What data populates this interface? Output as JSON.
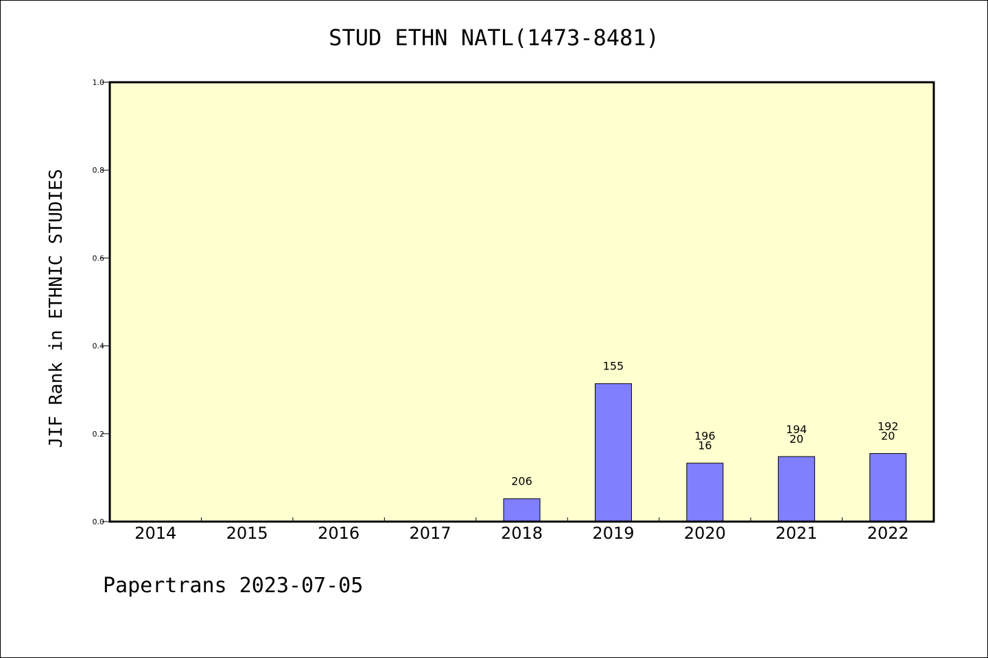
{
  "chart_data": {
    "type": "bar",
    "title": "STUD ETHN NATL(1473-8481)",
    "ylabel": "JIF Rank in ETHNIC STUDIES",
    "xlabel": "",
    "ylim": [
      0,
      1.0
    ],
    "yticks": [
      "0.0",
      "0.2",
      "0.4",
      "0.6",
      "0.8",
      "1.0"
    ],
    "categories": [
      "2014",
      "2015",
      "2016",
      "2017",
      "2018",
      "2019",
      "2020",
      "2021",
      "2022"
    ],
    "values": [
      null,
      null,
      null,
      null,
      0.052,
      0.314,
      0.133,
      0.148,
      0.155
    ],
    "labels": [
      [],
      [],
      [],
      [],
      [
        "206"
      ],
      [
        "155"
      ],
      [
        "196",
        "16"
      ],
      [
        "194",
        "20"
      ],
      [
        "192",
        "20"
      ]
    ],
    "grid": false,
    "legend": "none",
    "colors": {
      "plot_background": "#ffffd0",
      "bar_fill": "#8080ff",
      "bar_stroke": "#000000",
      "axis": "#000000"
    }
  },
  "footer": "Papertrans 2023-07-05"
}
